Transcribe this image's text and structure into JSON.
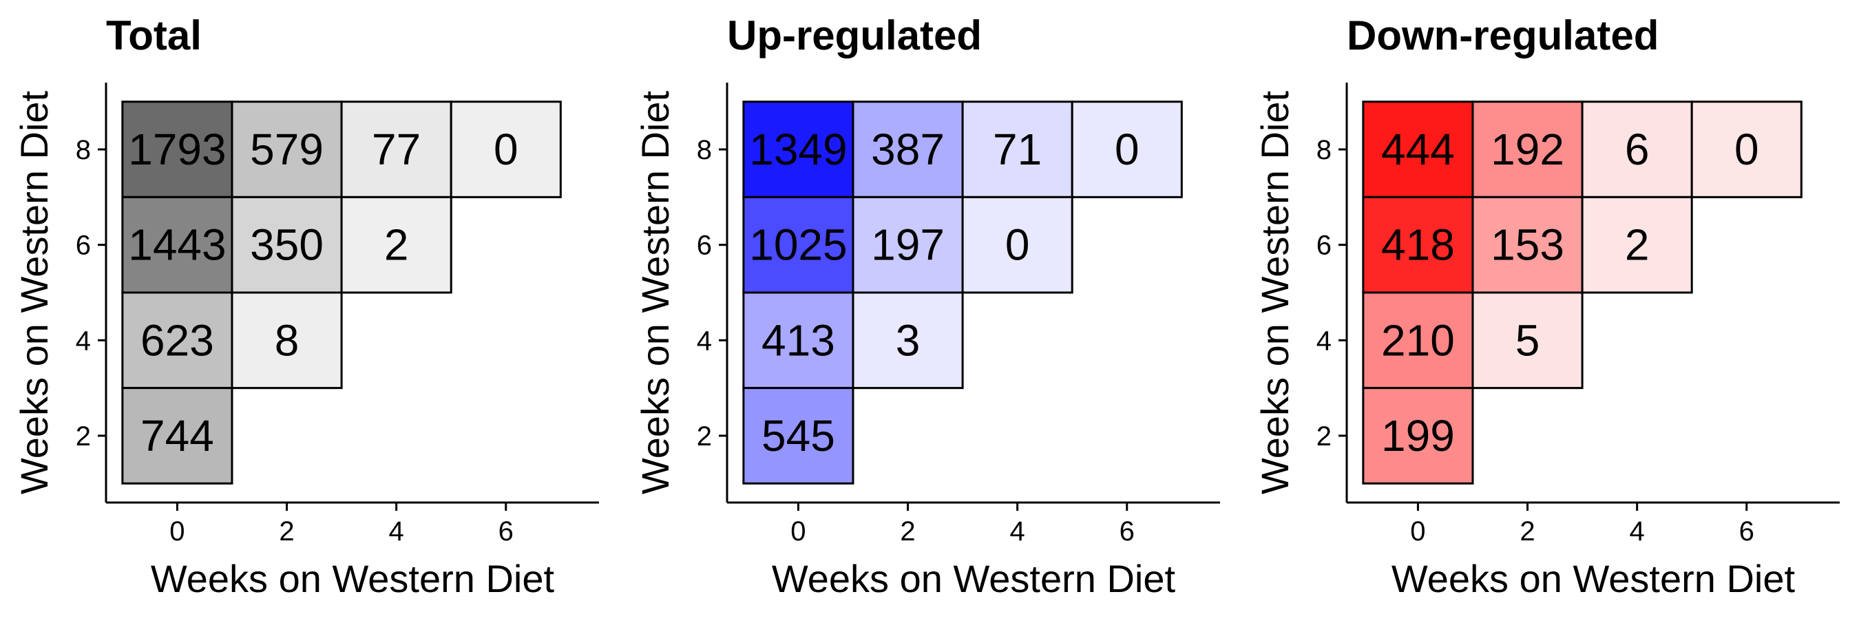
{
  "chart_data": [
    {
      "type": "heatmap",
      "title": "Total",
      "xlabel": "Weeks on Western Diet",
      "ylabel": "Weeks on Western Diet",
      "x_ticks": [
        0,
        2,
        4,
        6
      ],
      "y_ticks": [
        2,
        4,
        6,
        8
      ],
      "xlim": [
        -1.3,
        7.7
      ],
      "ylim": [
        0.6,
        9.4
      ],
      "cells": [
        {
          "x": 0,
          "y": 8,
          "value": 1793,
          "label": "1793"
        },
        {
          "x": 2,
          "y": 8,
          "value": 579,
          "label": "579"
        },
        {
          "x": 4,
          "y": 8,
          "value": 77,
          "label": "77"
        },
        {
          "x": 6,
          "y": 8,
          "value": 0,
          "label": "0"
        },
        {
          "x": 0,
          "y": 6,
          "value": 1443,
          "label": "1443"
        },
        {
          "x": 2,
          "y": 6,
          "value": 350,
          "label": "350"
        },
        {
          "x": 4,
          "y": 6,
          "value": 2,
          "label": "2"
        },
        {
          "x": 0,
          "y": 4,
          "value": 623,
          "label": "623"
        },
        {
          "x": 2,
          "y": 4,
          "value": 8,
          "label": "8"
        },
        {
          "x": 0,
          "y": 2,
          "value": 744,
          "label": "744"
        }
      ],
      "color_low": "#efefef",
      "color_high": "#6b6b6b"
    },
    {
      "type": "heatmap",
      "title": "Up-regulated",
      "xlabel": "Weeks on Western Diet",
      "ylabel": "Weeks on Western Diet",
      "x_ticks": [
        0,
        2,
        4,
        6
      ],
      "y_ticks": [
        2,
        4,
        6,
        8
      ],
      "xlim": [
        -1.3,
        7.7
      ],
      "ylim": [
        0.6,
        9.4
      ],
      "cells": [
        {
          "x": 0,
          "y": 8,
          "value": 1349,
          "label": "1349"
        },
        {
          "x": 2,
          "y": 8,
          "value": 387,
          "label": "387"
        },
        {
          "x": 4,
          "y": 8,
          "value": 71,
          "label": "71"
        },
        {
          "x": 6,
          "y": 8,
          "value": 0,
          "label": "0"
        },
        {
          "x": 0,
          "y": 6,
          "value": 1025,
          "label": "1025"
        },
        {
          "x": 2,
          "y": 6,
          "value": 197,
          "label": "197"
        },
        {
          "x": 4,
          "y": 6,
          "value": 0,
          "label": "0"
        },
        {
          "x": 0,
          "y": 4,
          "value": 413,
          "label": "413"
        },
        {
          "x": 2,
          "y": 4,
          "value": 3,
          "label": "3"
        },
        {
          "x": 0,
          "y": 2,
          "value": 545,
          "label": "545"
        }
      ],
      "color_low": "#e8e8ff",
      "color_high": "#1a1aff"
    },
    {
      "type": "heatmap",
      "title": "Down-regulated",
      "xlabel": "Weeks on Western Diet",
      "ylabel": "Weeks on Western Diet",
      "x_ticks": [
        0,
        2,
        4,
        6
      ],
      "y_ticks": [
        2,
        4,
        6,
        8
      ],
      "xlim": [
        -1.3,
        7.7
      ],
      "ylim": [
        0.6,
        9.4
      ],
      "cells": [
        {
          "x": 0,
          "y": 8,
          "value": 444,
          "label": "444"
        },
        {
          "x": 2,
          "y": 8,
          "value": 192,
          "label": "192"
        },
        {
          "x": 4,
          "y": 8,
          "value": 6,
          "label": "6"
        },
        {
          "x": 6,
          "y": 8,
          "value": 0,
          "label": "0"
        },
        {
          "x": 0,
          "y": 6,
          "value": 418,
          "label": "418"
        },
        {
          "x": 2,
          "y": 6,
          "value": 153,
          "label": "153"
        },
        {
          "x": 4,
          "y": 6,
          "value": 2,
          "label": "2"
        },
        {
          "x": 0,
          "y": 4,
          "value": 210,
          "label": "210"
        },
        {
          "x": 2,
          "y": 4,
          "value": 5,
          "label": "5"
        },
        {
          "x": 0,
          "y": 2,
          "value": 199,
          "label": "199"
        }
      ],
      "color_low": "#fde6e6",
      "color_high": "#ff1a1a"
    }
  ]
}
